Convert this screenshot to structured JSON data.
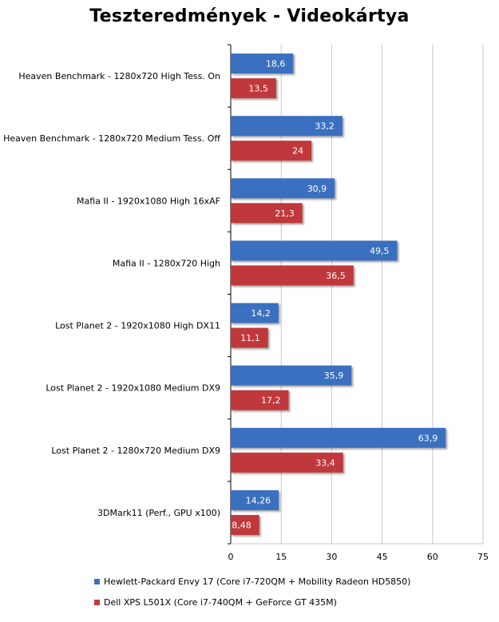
{
  "chart_data": {
    "type": "bar",
    "orientation": "horizontal",
    "title": "Teszteredmények - Videokártya",
    "categories": [
      "Heaven Benchmark - 1280x720 High Tess. On",
      "Heaven Benchmark - 1280x720 Medium Tess. Off",
      "Mafia II - 1920x1080 High 16xAF",
      "Mafia II - 1280x720 High",
      "Lost Planet 2 - 1920x1080 High DX11",
      "Lost Planet 2 - 1920x1080 Medium DX9",
      "Lost Planet 2 - 1280x720 Medium DX9",
      "3DMark11 (Perf., GPU x100)"
    ],
    "series": [
      {
        "name": "Hewlett-Packard Envy 17 (Core i7-720QM + Mobility Radeon HD5850)",
        "color": "#3a6fc0",
        "values": [
          18.6,
          33.2,
          30.9,
          49.5,
          14.2,
          35.9,
          63.9,
          14.26
        ],
        "labels": [
          "18,6",
          "33,2",
          "30,9",
          "49,5",
          "14,2",
          "35,9",
          "63,9",
          "14,26"
        ]
      },
      {
        "name": "Dell XPS L501X (Core i7-740QM + GeForce GT 435M)",
        "color": "#c0393b",
        "values": [
          13.5,
          24,
          21.3,
          36.5,
          11.1,
          17.2,
          33.4,
          8.48
        ],
        "labels": [
          "13,5",
          "24",
          "21,3",
          "36,5",
          "11,1",
          "17,2",
          "33,4",
          "8,48"
        ]
      }
    ],
    "xlim": [
      0,
      75
    ],
    "xticks": [
      "0",
      "15",
      "30",
      "45",
      "60",
      "75"
    ],
    "grid": true,
    "legend_position": "bottom"
  }
}
